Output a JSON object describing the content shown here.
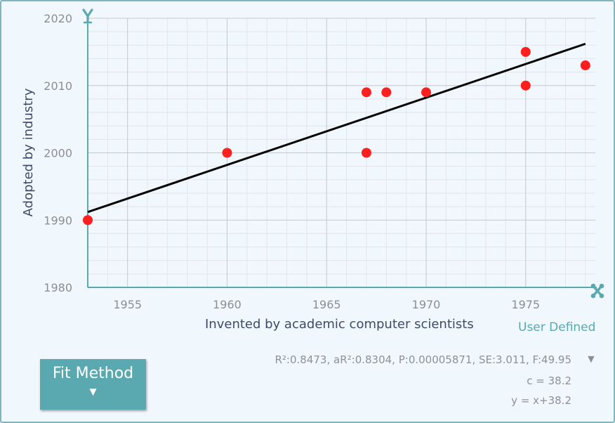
{
  "chart_data": {
    "type": "scatter",
    "xlabel": "Invented by academic computer scientists",
    "ylabel": "Adopted by industry",
    "xlim": [
      1953,
      1978.5
    ],
    "ylim": [
      1980,
      2020
    ],
    "x_ticks": [
      1955,
      1960,
      1965,
      1970,
      1975
    ],
    "y_ticks": [
      1980,
      1990,
      2000,
      2010,
      2020
    ],
    "points": [
      {
        "x": 1953,
        "y": 1990
      },
      {
        "x": 1960,
        "y": 2000
      },
      {
        "x": 1967,
        "y": 2000
      },
      {
        "x": 1967,
        "y": 2009
      },
      {
        "x": 1968,
        "y": 2009
      },
      {
        "x": 1970,
        "y": 2009
      },
      {
        "x": 1975,
        "y": 2015
      },
      {
        "x": 1975,
        "y": 2010
      },
      {
        "x": 1978,
        "y": 2013
      }
    ],
    "fit_line": {
      "x": [
        1953,
        1978
      ],
      "y": [
        1991.2,
        2016.2
      ]
    },
    "grid": true,
    "colors": {
      "point": "#ff1f1f",
      "fit": "#000000",
      "major_grid": "#c4c8cc",
      "minor_grid": "#e3e6e9",
      "axis": "#5aa8b0"
    }
  },
  "axis_icons": {
    "y": "y-axis-icon",
    "x": "x-axis-icon"
  },
  "fit": {
    "method_label": "Fit Method",
    "arrow": "▼",
    "stats": "R²:0.8473, aR²:0.8304, P:0.00005871, SE:3.011, F:49.95",
    "stats_toggle": "▼",
    "coef": "c = 38.2",
    "equation": "y = x+38.2",
    "user_defined": "User Defined"
  }
}
